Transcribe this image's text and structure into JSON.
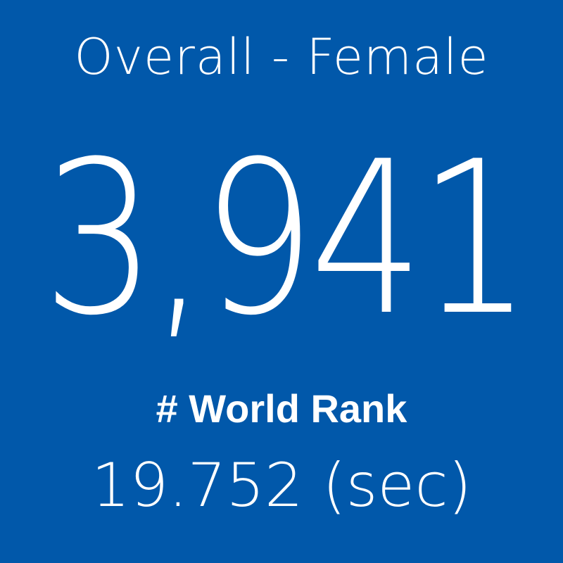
{
  "title": "Overall - Female",
  "rank": "3,941",
  "label": "# World Rank",
  "time": "19.752 (sec)"
}
